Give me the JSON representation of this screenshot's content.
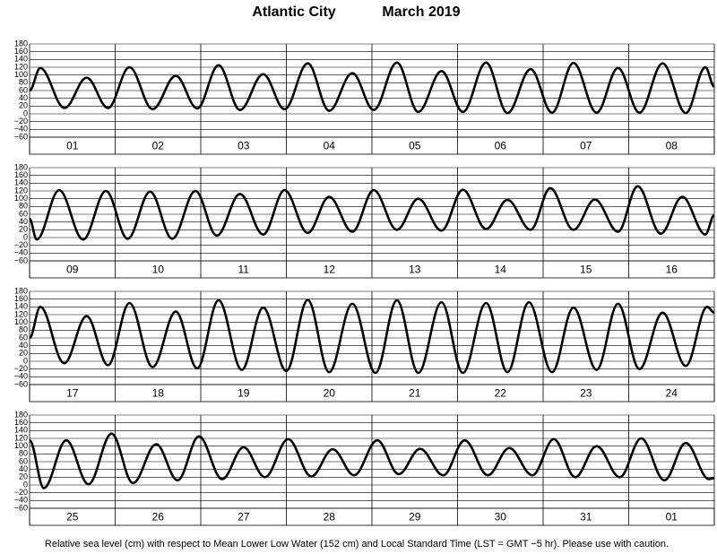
{
  "title": "Atlantic City",
  "subtitle": "March   2019",
  "note": "Relative sea level (cm) with respect to Mean Lower Low Water (152 cm) and Local Standard Time (LST = GMT −5 hr). Please use with caution.",
  "chart_data": [
    {
      "type": "line",
      "categories": [
        "01",
        "02",
        "03",
        "04",
        "05",
        "06",
        "07",
        "08"
      ],
      "color": "#000000",
      "xlim": [
        0,
        192
      ],
      "ylim": [
        -60,
        180
      ],
      "yticks": [
        {
          "value": -60,
          "label": "−60"
        },
        {
          "value": -40,
          "label": "−40"
        },
        {
          "value": -20,
          "label": "−20"
        },
        0,
        20,
        40,
        60,
        80,
        100,
        120,
        140,
        160,
        180
      ],
      "x": [
        0,
        3,
        9.8,
        16,
        22,
        28,
        34.5,
        41,
        47,
        53,
        59,
        65.5,
        71.5,
        78,
        84,
        90.5,
        96.5,
        103,
        109,
        115.5,
        121.5,
        128,
        134,
        140.5,
        146.5,
        152.5,
        159,
        165,
        171,
        177.5,
        184,
        189.5,
        192
      ],
      "values": [
        60,
        118,
        15,
        93,
        15,
        120,
        12,
        98,
        14,
        125,
        10,
        102,
        12,
        130,
        8,
        105,
        10,
        132,
        5,
        110,
        5,
        132,
        2,
        115,
        3,
        131,
        3,
        118,
        3,
        130,
        2,
        120,
        70
      ]
    },
    {
      "type": "line",
      "categories": [
        "09",
        "10",
        "11",
        "12",
        "13",
        "14",
        "15",
        "16"
      ],
      "color": "#000000",
      "xlim": [
        0,
        192
      ],
      "ylim": [
        -60,
        180
      ],
      "yticks": [
        {
          "value": -60,
          "label": "−60"
        },
        {
          "value": -40,
          "label": "−40"
        },
        {
          "value": -20,
          "label": "−20"
        },
        0,
        20,
        40,
        60,
        80,
        100,
        120,
        140,
        160,
        180
      ],
      "x": [
        0,
        2,
        8.3,
        15,
        21.4,
        27.5,
        33.8,
        40,
        46.5,
        52.5,
        59,
        65.5,
        71.5,
        78,
        84,
        90.5,
        96.5,
        103,
        109,
        115.5,
        121.5,
        128,
        134,
        140.5,
        146,
        152.5,
        158.5,
        165,
        170.5,
        177,
        183,
        189.5,
        192
      ],
      "values": [
        48,
        -5,
        122,
        -5,
        120,
        -3,
        118,
        -3,
        120,
        5,
        112,
        8,
        122,
        12,
        105,
        15,
        122,
        20,
        100,
        18,
        123,
        22,
        97,
        20,
        127,
        20,
        98,
        15,
        132,
        10,
        105,
        8,
        58
      ]
    },
    {
      "type": "line",
      "categories": [
        "17",
        "18",
        "19",
        "20",
        "21",
        "22",
        "23",
        "24"
      ],
      "color": "#000000",
      "xlim": [
        0,
        192
      ],
      "ylim": [
        -60,
        180
      ],
      "yticks": [
        {
          "value": -60,
          "label": "−60"
        },
        {
          "value": -40,
          "label": "−40"
        },
        {
          "value": -20,
          "label": "−20"
        },
        0,
        20,
        40,
        60,
        80,
        100,
        120,
        140,
        160,
        180
      ],
      "x": [
        0,
        3,
        9.7,
        16,
        22,
        28,
        34.5,
        41,
        47,
        53,
        59.5,
        65.5,
        72,
        78,
        84,
        90.5,
        97,
        103,
        109,
        115.5,
        121.5,
        128,
        134,
        140,
        146.5,
        152.5,
        159,
        165,
        171,
        177.5,
        184,
        190,
        192
      ],
      "values": [
        60,
        140,
        -5,
        116,
        -10,
        150,
        -15,
        128,
        -18,
        157,
        -22,
        138,
        -25,
        158,
        -28,
        148,
        -30,
        157,
        -30,
        152,
        -30,
        150,
        -28,
        152,
        -28,
        138,
        -22,
        148,
        -20,
        125,
        -12,
        140,
        125
      ]
    },
    {
      "type": "line",
      "categories": [
        "25",
        "26",
        "27",
        "28",
        "29",
        "30",
        "31",
        "01"
      ],
      "color": "#000000",
      "xlim": [
        0,
        192
      ],
      "ylim": [
        -60,
        180
      ],
      "yticks": [
        {
          "value": -60,
          "label": "−60"
        },
        {
          "value": -40,
          "label": "−40"
        },
        {
          "value": -20,
          "label": "−20"
        },
        0,
        20,
        40,
        60,
        80,
        100,
        120,
        140,
        160,
        180
      ],
      "x": [
        0,
        4,
        10.3,
        16.5,
        23,
        29,
        35.5,
        41.5,
        47.5,
        54,
        60,
        66,
        72.5,
        79,
        85,
        91,
        97.5,
        103.5,
        109.5,
        116,
        122,
        128.5,
        134.5,
        141,
        147,
        153,
        159,
        165.5,
        171.5,
        178,
        184,
        190.5,
        192
      ],
      "values": [
        115,
        -8,
        115,
        2,
        132,
        5,
        105,
        12,
        125,
        15,
        97,
        20,
        118,
        22,
        92,
        25,
        115,
        28,
        93,
        25,
        115,
        25,
        95,
        25,
        118,
        20,
        100,
        20,
        120,
        12,
        108,
        15,
        18
      ]
    }
  ]
}
